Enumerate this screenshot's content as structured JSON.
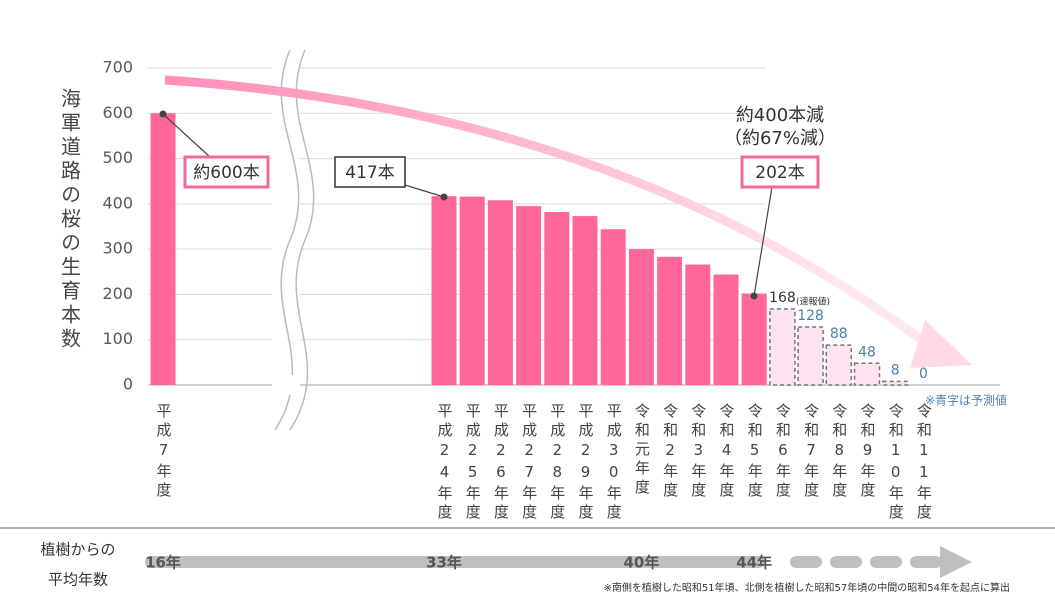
{
  "chart_data": {
    "type": "bar",
    "ylabel": "海軍道路の桜の生育本数",
    "categories": [
      "平成7年度",
      "平成24年度",
      "平成25年度",
      "平成26年度",
      "平成27年度",
      "平成28年度",
      "平成29年度",
      "平成30年度",
      "令和元年度",
      "令和2年度",
      "令和3年度",
      "令和4年度",
      "令和5年度",
      "令和6年度",
      "令和7年度",
      "令和8年度",
      "令和9年度",
      "令和10年度",
      "令和11年度"
    ],
    "series": [
      {
        "color": "#ff6699",
        "values": [
          600,
          417,
          416,
          408,
          395,
          382,
          373,
          344,
          300,
          283,
          266,
          244,
          202,
          null,
          null,
          null,
          null,
          null,
          null
        ]
      },
      {
        "color": "#fde3ef",
        "stroke": "#777777",
        "dashed": true,
        "values": [
          null,
          null,
          null,
          null,
          null,
          null,
          null,
          null,
          null,
          null,
          null,
          null,
          null,
          168,
          128,
          88,
          48,
          8,
          0
        ],
        "label_colors": [
          null,
          null,
          null,
          null,
          null,
          null,
          null,
          null,
          null,
          null,
          null,
          null,
          null,
          "#333333",
          "#4a7fb5",
          "#4a7fb5",
          "#4a7fb5",
          "#4a7fb5",
          "#4a7fb5"
        ]
      }
    ],
    "ylim": [
      0,
      700
    ],
    "yticks": [
      0,
      100,
      200,
      300,
      400,
      500,
      600,
      700
    ],
    "grid": true,
    "annotations": [
      "約600本",
      "417本",
      "202本",
      "約400本減",
      "（約67%減）",
      "(速報値)",
      "※青字は予測値"
    ],
    "timeline": {
      "title": [
        "植樹からの",
        "平均年数"
      ],
      "labels": [
        "16年",
        "33年",
        "40年",
        "44年"
      ]
    },
    "footnote": "※南側を植樹した昭和51年頃、北側を植樹した昭和57年頃の中間の昭和54年を起点に算出"
  }
}
